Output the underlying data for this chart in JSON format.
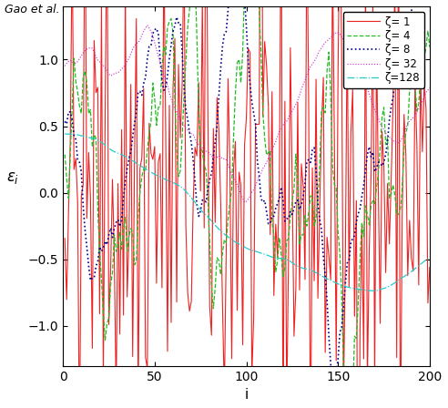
{
  "L": 200,
  "zeta_values": [
    1,
    4,
    8,
    32,
    128
  ],
  "legend_labels": [
    "ζ= 1",
    "ζ= 4",
    "ζ= 8",
    "ζ= 32",
    "ζ=128"
  ],
  "colors": [
    "#ee2222",
    "#22bb22",
    "#000088",
    "#cc22cc",
    "#22cccc"
  ],
  "xlabel": "i",
  "ylabel": "εi",
  "xlim": [
    0,
    200
  ],
  "ylim": [
    -1.3,
    1.4
  ],
  "yticks": [
    -1.0,
    -0.5,
    0.0,
    0.5,
    1.0
  ],
  "xticks": [
    0,
    50,
    100,
    150,
    200
  ],
  "title": "Gao et al.",
  "figsize": [
    4.92,
    4.48
  ],
  "dpi": 100
}
